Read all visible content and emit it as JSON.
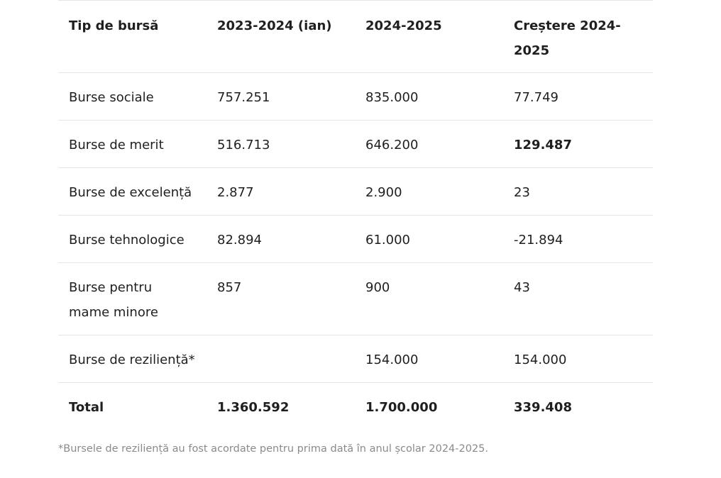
{
  "table": {
    "headers": [
      "Tip de bursă",
      "2023-2024 (ian)",
      "2024-2025",
      "Creștere 2024-2025"
    ],
    "rows": [
      {
        "label": "Burse sociale",
        "v2023": "757.251",
        "v2024": "835.000",
        "growth": "77.749"
      },
      {
        "label": "Burse de merit",
        "v2023": "516.713",
        "v2024": "646.200",
        "growth": "129.487"
      },
      {
        "label": "Burse de excelență",
        "v2023": "2.877",
        "v2024": "2.900",
        "growth": "23"
      },
      {
        "label": "Burse tehnologice",
        "v2023": "82.894",
        "v2024": "61.000",
        "growth": "-21.894"
      },
      {
        "label": "Burse pentru mame minore",
        "v2023": "857",
        "v2024": "900",
        "growth": "43"
      },
      {
        "label": "Burse de reziliență*",
        "v2023": "",
        "v2024": "154.000",
        "growth": "154.000"
      }
    ],
    "total": {
      "label": "Total",
      "v2023": "1.360.592",
      "v2024": "1.700.000",
      "growth": "339.408"
    }
  },
  "footnote": "*Bursele de reziliență au fost acordate pentru prima dată în anul școlar 2024-2025."
}
